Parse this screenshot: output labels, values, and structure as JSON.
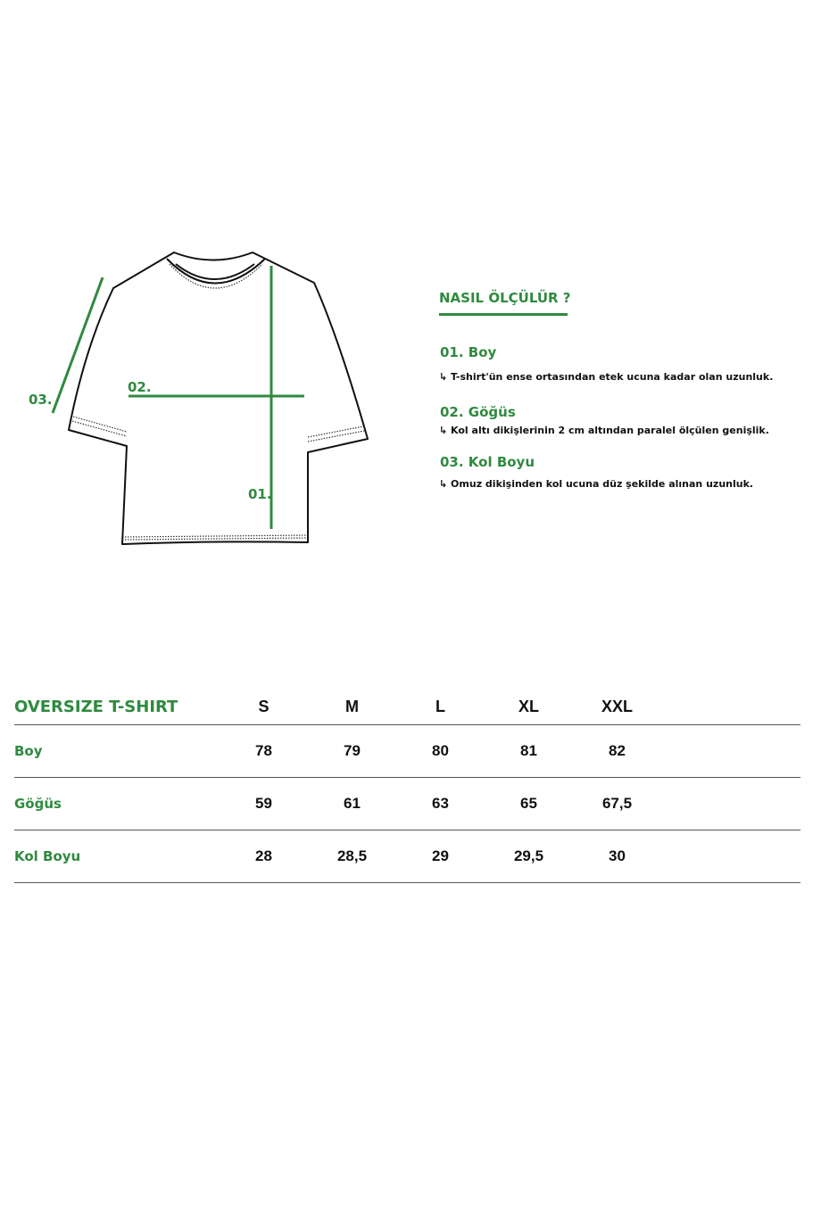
{
  "diagram": {
    "labels": {
      "boy": "01.",
      "gogus": "02.",
      "kol": "03."
    },
    "accent_color": "#2f8a3f"
  },
  "howto": {
    "title": "NASIL ÖLÇÜLÜR ?",
    "items": [
      {
        "title": "01. Boy",
        "desc": "↳ T-shirt'ün ense ortasından etek ucuna kadar olan uzunluk."
      },
      {
        "title": "02. Göğüs",
        "desc": "↳ Kol altı dikişlerinin 2 cm altından paralel ölçülen genişlik."
      },
      {
        "title": "03. Kol Boyu",
        "desc": "↳ Omuz dikişinden kol ucuna düz şekilde alınan uzunluk."
      }
    ]
  },
  "size_table": {
    "header": [
      "OVERSIZE T-SHIRT",
      "S",
      "M",
      "L",
      "XL",
      "XXL"
    ],
    "rows": [
      {
        "label": "Boy",
        "values": [
          "78",
          "79",
          "80",
          "81",
          "82"
        ]
      },
      {
        "label": "Göğüs",
        "values": [
          "59",
          "61",
          "63",
          "65",
          "67,5"
        ]
      },
      {
        "label": "Kol Boyu",
        "values": [
          "28",
          "28,5",
          "29",
          "29,5",
          "30"
        ]
      }
    ]
  }
}
